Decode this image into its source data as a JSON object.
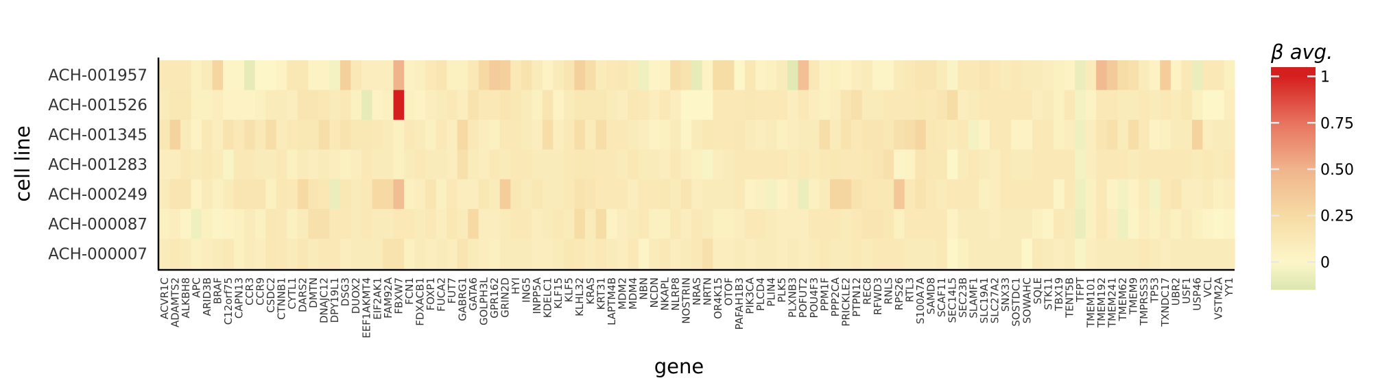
{
  "chart_data": {
    "type": "heatmap",
    "xlabel": "gene",
    "ylabel": "cell line",
    "legend_title": "β avg.",
    "legend_placement": "right",
    "color_scale": {
      "stops": [
        {
          "value": -0.15,
          "color": "#dbe6b0"
        },
        {
          "value": 0,
          "color": "#fdf6c9"
        },
        {
          "value": 0.25,
          "color": "#f6dba4"
        },
        {
          "value": 0.5,
          "color": "#f0b48c"
        },
        {
          "value": 0.75,
          "color": "#e7735e"
        },
        {
          "value": 1.0,
          "color": "#d51f1f"
        }
      ],
      "ticks": [
        1,
        0.75,
        0.5,
        0.25,
        0
      ],
      "tick_labels": [
        "1",
        "0.75",
        "0.50",
        "0.25",
        "0"
      ],
      "range": [
        -0.15,
        1.05
      ]
    },
    "rows": [
      "ACH-001957",
      "ACH-001526",
      "ACH-001345",
      "ACH-001283",
      "ACH-000249",
      "ACH-000087",
      "ACH-000007"
    ],
    "genes": [
      "ACVR1C",
      "ADAMTS2",
      "ALKBH8",
      "APC",
      "ARID3B",
      "BRAF",
      "C12orf75",
      "CAPN13",
      "CCR3",
      "CCR9",
      "CSDC2",
      "CTNNB1",
      "CYTL1",
      "DARS2",
      "DMTN",
      "DNAJC12",
      "DPY19L1",
      "DSG3",
      "DUOX2",
      "EEF1AKMT4",
      "EIF2AK1",
      "FAM92A",
      "FBXW7",
      "FCN1",
      "FDXACB1",
      "FOXP1",
      "FUCA2",
      "FUT7",
      "GABRG1",
      "GATA6",
      "GOLPH3L",
      "GPR162",
      "GRIN2D",
      "HYI",
      "ING5",
      "INPP5A",
      "KDELC1",
      "KLF15",
      "KLF5",
      "KLHL32",
      "KRAS",
      "KRT31",
      "LAPTM4B",
      "MDM2",
      "MDM4",
      "NBN",
      "NCDN",
      "NKAPL",
      "NLRP8",
      "NOSTRIN",
      "NRAS",
      "NRTN",
      "OR4K15",
      "OTOF",
      "PAFAH1B3",
      "PIK3CA",
      "PLCD4",
      "PLIN4",
      "PLK5",
      "PLXNB3",
      "POFUT2",
      "POU4F3",
      "PPM1F",
      "PPP2CA",
      "PRICKLE2",
      "PTPN12",
      "REC8",
      "RFWD3",
      "RNLS",
      "RPS26",
      "RTL3",
      "S100A7A",
      "SAMD8",
      "SCAF11",
      "SEC14L5",
      "SEC23B",
      "SLAMF1",
      "SLC19A1",
      "SLC27A2",
      "SNX33",
      "SOSTDC1",
      "SOWAHC",
      "SQLE",
      "STK11",
      "TBX19",
      "TENT5B",
      "TFPT",
      "TMEM101",
      "TMEM192",
      "TMEM241",
      "TMEM62",
      "TMEM9",
      "TMPRSS3",
      "TP53",
      "TXNDC17",
      "UBR2",
      "USF1",
      "USP46",
      "VCL",
      "VSTM2A",
      "YY1"
    ],
    "values": [
      [
        0.12,
        0.12,
        0.12,
        0.06,
        0.1,
        0.28,
        0.02,
        0.02,
        -0.1,
        0.0,
        0.0,
        0.04,
        0.14,
        0.14,
        0.04,
        0.04,
        -0.04,
        0.32,
        0.12,
        0.08,
        0.08,
        0.08,
        0.5,
        0.05,
        0.07,
        0.12,
        0.16,
        0.06,
        0.06,
        0.12,
        0.26,
        0.35,
        0.32,
        0.12,
        0.18,
        0.1,
        0.04,
        0.1,
        0.16,
        0.32,
        0.22,
        0.1,
        0.12,
        0.14,
        0.1,
        -0.06,
        0.02,
        0.04,
        0.22,
        0.18,
        -0.1,
        0.04,
        0.24,
        0.24,
        0.0,
        0.14,
        0.04,
        0.06,
        0.1,
        -0.12,
        0.42,
        0.12,
        0.05,
        0.06,
        0.04,
        0.08,
        0.1,
        0.02,
        0.02,
        0.1,
        0.12,
        0.16,
        0.16,
        0.1,
        -0.02,
        0.12,
        0.12,
        0.16,
        0.12,
        0.1,
        0.12,
        0.1,
        0.1,
        0.08,
        0.06,
        0.04,
        -0.08,
        0.1,
        0.46,
        0.36,
        0.24,
        0.2,
        0.1,
        0.04,
        0.34,
        0.04,
        0.12,
        -0.08,
        0.12,
        0.12,
        0.06
      ],
      [
        0.1,
        0.14,
        0.14,
        0.06,
        0.06,
        0.08,
        0.04,
        0.04,
        0.04,
        0.06,
        0.1,
        0.1,
        0.08,
        0.16,
        0.16,
        0.14,
        0.1,
        0.12,
        0.06,
        -0.1,
        0.04,
        0.06,
        1.0,
        0.06,
        0.04,
        0.08,
        0.1,
        0.12,
        0.08,
        0.18,
        0.12,
        0.12,
        0.16,
        0.14,
        0.1,
        0.06,
        0.16,
        0.04,
        0.1,
        0.14,
        0.14,
        0.14,
        0.1,
        0.08,
        0.14,
        0.12,
        0.08,
        0.12,
        0.08,
        0.0,
        0.0,
        0.0,
        0.12,
        0.12,
        0.12,
        0.14,
        0.12,
        0.12,
        0.12,
        0.08,
        0.12,
        0.08,
        0.06,
        0.08,
        0.16,
        0.2,
        0.1,
        0.1,
        0.12,
        0.12,
        0.12,
        0.14,
        0.12,
        0.16,
        0.24,
        0.08,
        0.1,
        0.12,
        0.12,
        0.12,
        0.12,
        0.12,
        0.08,
        0.1,
        0.06,
        0.12,
        -0.04,
        0.04,
        0.12,
        0.12,
        0.1,
        0.1,
        0.12,
        0.1,
        0.12,
        0.1,
        0.14,
        0.06,
        0.0,
        0.0,
        0.08
      ],
      [
        0.14,
        0.3,
        0.1,
        0.04,
        0.12,
        0.08,
        0.18,
        0.12,
        0.2,
        0.12,
        0.22,
        0.1,
        0.12,
        0.14,
        0.14,
        0.22,
        0.12,
        0.18,
        0.14,
        0.14,
        0.12,
        0.1,
        0.06,
        0.12,
        0.1,
        0.06,
        0.12,
        0.08,
        0.26,
        0.12,
        0.08,
        0.06,
        0.12,
        0.12,
        0.1,
        0.08,
        0.22,
        0.08,
        0.12,
        0.22,
        0.1,
        0.22,
        0.12,
        0.12,
        0.1,
        0.08,
        0.04,
        0.06,
        0.1,
        0.02,
        0.1,
        0.14,
        0.12,
        0.12,
        0.14,
        0.1,
        0.08,
        0.1,
        0.06,
        0.08,
        0.1,
        0.1,
        0.22,
        0.1,
        0.18,
        0.12,
        0.16,
        0.16,
        0.14,
        0.2,
        0.22,
        0.28,
        0.14,
        0.12,
        0.1,
        0.12,
        -0.04,
        0.04,
        0.12,
        0.12,
        0.04,
        0.04,
        0.12,
        0.12,
        0.06,
        0.08,
        -0.06,
        0.08,
        0.16,
        0.2,
        0.1,
        0.22,
        0.12,
        0.04,
        0.06,
        0.1,
        0.1,
        0.3,
        0.08,
        0.1,
        0.1
      ],
      [
        0.08,
        0.08,
        0.12,
        0.1,
        0.12,
        0.1,
        -0.02,
        0.12,
        0.12,
        0.1,
        0.1,
        0.12,
        0.06,
        0.1,
        0.08,
        0.1,
        0.08,
        0.06,
        0.08,
        0.12,
        0.1,
        0.1,
        0.06,
        0.1,
        0.12,
        0.1,
        0.1,
        0.08,
        0.2,
        0.1,
        0.08,
        0.12,
        0.1,
        0.12,
        0.12,
        0.1,
        0.1,
        0.1,
        0.12,
        0.14,
        0.14,
        0.12,
        0.12,
        0.1,
        0.14,
        0.1,
        0.1,
        0.08,
        0.12,
        0.08,
        0.06,
        -0.02,
        0.08,
        0.1,
        0.12,
        0.12,
        0.12,
        0.12,
        0.12,
        0.1,
        0.12,
        0.1,
        0.12,
        0.14,
        0.12,
        0.12,
        0.14,
        0.16,
        0.2,
        0.02,
        0.04,
        0.16,
        0.14,
        0.14,
        0.0,
        0.1,
        0.12,
        0.1,
        0.08,
        0.12,
        0.1,
        0.1,
        0.12,
        0.12,
        0.12,
        0.12,
        -0.04,
        0.08,
        0.12,
        0.12,
        0.12,
        0.1,
        0.12,
        0.12,
        0.12,
        0.12,
        0.12,
        0.1,
        0.12,
        0.1,
        0.12
      ],
      [
        0.1,
        0.16,
        0.16,
        0.04,
        0.1,
        0.06,
        0.1,
        0.16,
        0.16,
        0.16,
        0.06,
        0.14,
        0.12,
        0.26,
        0.16,
        0.14,
        -0.08,
        0.14,
        0.1,
        0.12,
        0.26,
        0.26,
        0.44,
        0.06,
        0.08,
        0.16,
        0.06,
        0.12,
        0.08,
        0.08,
        0.14,
        0.1,
        0.34,
        0.14,
        0.1,
        0.14,
        0.1,
        0.1,
        0.12,
        0.18,
        0.16,
        0.12,
        0.12,
        0.12,
        0.08,
        0.12,
        0.12,
        0.14,
        0.1,
        0.16,
        0.08,
        0.1,
        0.1,
        0.1,
        0.12,
        0.04,
        0.06,
        -0.04,
        0.04,
        0.08,
        -0.08,
        0.06,
        0.1,
        0.28,
        0.28,
        0.18,
        0.14,
        0.14,
        0.14,
        0.38,
        0.12,
        0.18,
        0.12,
        0.1,
        0.12,
        0.12,
        0.12,
        0.06,
        0.08,
        0.12,
        0.12,
        0.12,
        0.12,
        0.12,
        0.02,
        0.12,
        -0.06,
        0.06,
        0.12,
        0.04,
        -0.04,
        0.04,
        0.1,
        -0.04,
        0.12,
        0.16,
        0.08,
        0.08,
        0.1,
        0.06,
        0.08
      ],
      [
        0.06,
        0.08,
        0.02,
        -0.06,
        0.06,
        0.02,
        0.04,
        0.06,
        0.1,
        0.06,
        0.14,
        0.12,
        0.06,
        0.1,
        0.2,
        0.2,
        0.12,
        0.12,
        0.1,
        0.12,
        0.1,
        0.1,
        0.12,
        0.12,
        0.1,
        0.12,
        0.08,
        0.14,
        0.1,
        0.26,
        0.08,
        0.08,
        0.1,
        0.12,
        0.12,
        0.08,
        0.1,
        0.12,
        0.1,
        0.24,
        0.1,
        0.24,
        0.04,
        0.08,
        0.1,
        0.12,
        0.06,
        0.06,
        0.12,
        0.08,
        0.12,
        0.1,
        0.06,
        0.06,
        0.08,
        0.12,
        0.12,
        0.1,
        0.08,
        0.08,
        0.08,
        0.12,
        0.12,
        0.12,
        0.1,
        0.12,
        0.16,
        0.16,
        0.14,
        0.06,
        0.12,
        0.12,
        0.12,
        0.12,
        0.04,
        0.1,
        0.1,
        0.1,
        0.08,
        0.1,
        0.1,
        0.1,
        0.06,
        0.02,
        0.12,
        0.1,
        -0.08,
        0.06,
        0.12,
        0.08,
        -0.06,
        0.02,
        0.08,
        0.06,
        0.1,
        0.06,
        0.1,
        0.06,
        0.02,
        0.0,
        0.02
      ],
      [
        0.1,
        0.12,
        0.1,
        0.06,
        0.08,
        0.1,
        0.12,
        0.06,
        0.1,
        0.08,
        0.14,
        0.12,
        0.1,
        0.14,
        0.1,
        0.12,
        0.12,
        0.08,
        0.1,
        0.1,
        0.1,
        0.18,
        0.18,
        0.06,
        0.1,
        0.08,
        0.1,
        0.08,
        0.16,
        0.1,
        0.08,
        0.06,
        0.1,
        0.1,
        0.1,
        0.08,
        0.08,
        0.1,
        0.14,
        0.12,
        0.1,
        0.12,
        0.1,
        0.08,
        0.12,
        0.02,
        0.1,
        0.12,
        0.08,
        0.1,
        0.12,
        0.2,
        0.08,
        0.08,
        0.1,
        0.08,
        0.1,
        0.1,
        0.08,
        0.1,
        0.08,
        0.1,
        0.12,
        0.1,
        0.1,
        0.12,
        0.1,
        0.12,
        0.12,
        0.12,
        0.1,
        0.1,
        0.1,
        0.12,
        0.0,
        0.06,
        0.1,
        0.1,
        0.1,
        0.1,
        0.1,
        0.0,
        0.12,
        0.1,
        0.08,
        0.1,
        -0.02,
        0.08,
        0.1,
        0.1,
        0.1,
        0.1,
        0.12,
        0.1,
        0.08,
        0.1,
        0.1,
        0.1,
        0.1,
        0.1,
        0.1
      ]
    ]
  }
}
